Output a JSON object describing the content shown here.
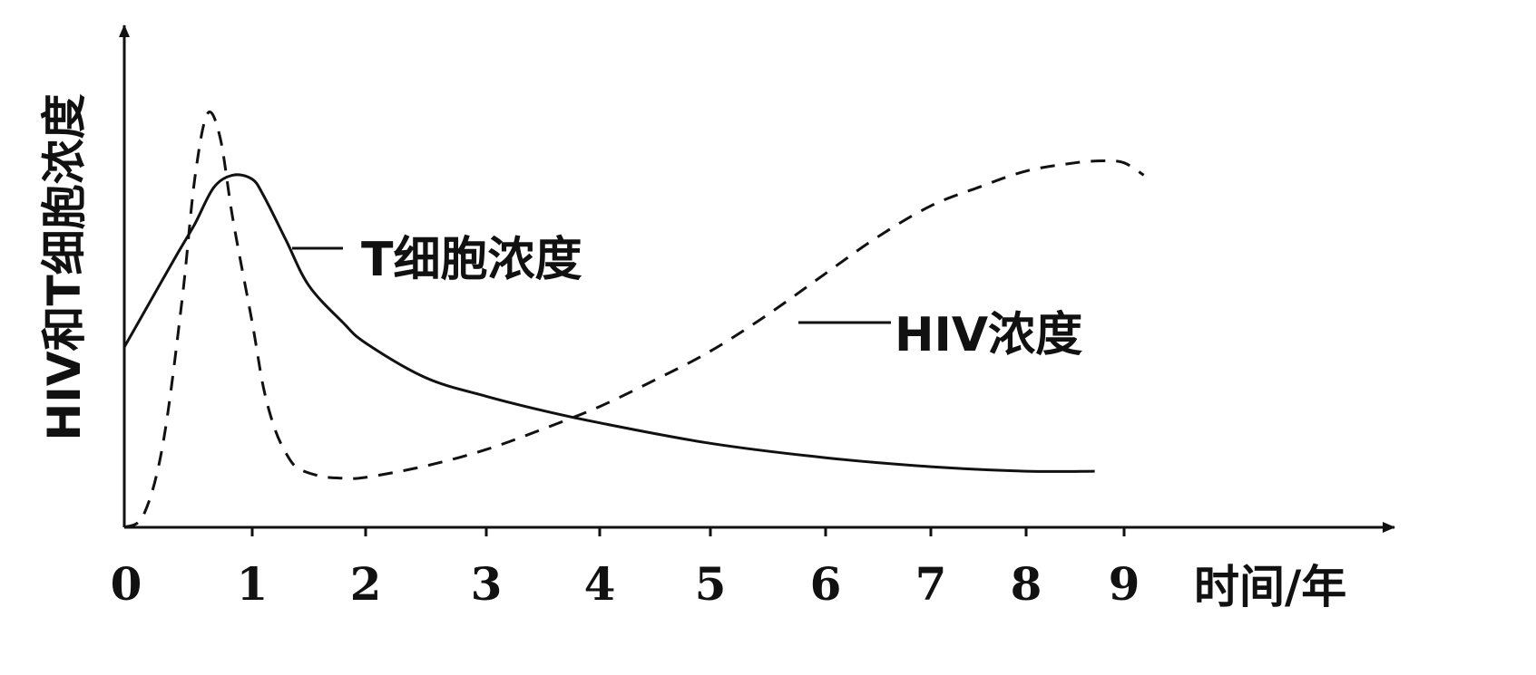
{
  "chart_data": {
    "type": "line",
    "xlabel": "时间/年",
    "ylabel": "HIV和T细胞浓度",
    "xlim": [
      0,
      10.5
    ],
    "ylim": [
      0,
      10
    ],
    "x_ticks": [
      "0",
      "1",
      "2",
      "3",
      "4",
      "5",
      "6",
      "7",
      "8",
      "9"
    ],
    "grid": false,
    "series": [
      {
        "name": "T细胞浓度",
        "style": "solid",
        "x": [
          0,
          0.2,
          0.4,
          0.55,
          0.7,
          0.85,
          1.0,
          1.1,
          1.3,
          1.5,
          1.8,
          2.0,
          2.5,
          3.0,
          3.5,
          4.0,
          5.0,
          6.0,
          7.0,
          8.0,
          8.7
        ],
        "y": [
          4.4,
          5.5,
          6.6,
          7.4,
          8.3,
          8.6,
          8.5,
          8.1,
          7.0,
          5.9,
          5.0,
          4.5,
          3.65,
          3.2,
          2.85,
          2.55,
          2.05,
          1.7,
          1.48,
          1.37,
          1.37
        ]
      },
      {
        "name": "HIV浓度",
        "style": "dashed",
        "x": [
          0,
          0.15,
          0.3,
          0.45,
          0.55,
          0.65,
          0.75,
          0.85,
          1.0,
          1.1,
          1.2,
          1.3,
          1.4,
          1.6,
          1.8,
          2.0,
          2.5,
          3.0,
          3.5,
          4.0,
          4.5,
          5.0,
          5.5,
          6.0,
          6.5,
          7.0,
          7.5,
          8.0,
          8.5,
          8.8,
          9.0,
          9.2
        ],
        "y": [
          0,
          0.3,
          2.0,
          5.5,
          8.5,
          10.1,
          9.5,
          7.5,
          5.0,
          3.4,
          2.4,
          1.8,
          1.45,
          1.25,
          1.2,
          1.22,
          1.5,
          1.9,
          2.4,
          2.95,
          3.6,
          4.3,
          5.2,
          6.2,
          7.1,
          7.85,
          8.3,
          8.7,
          8.9,
          8.95,
          8.9,
          8.6
        ]
      }
    ]
  }
}
